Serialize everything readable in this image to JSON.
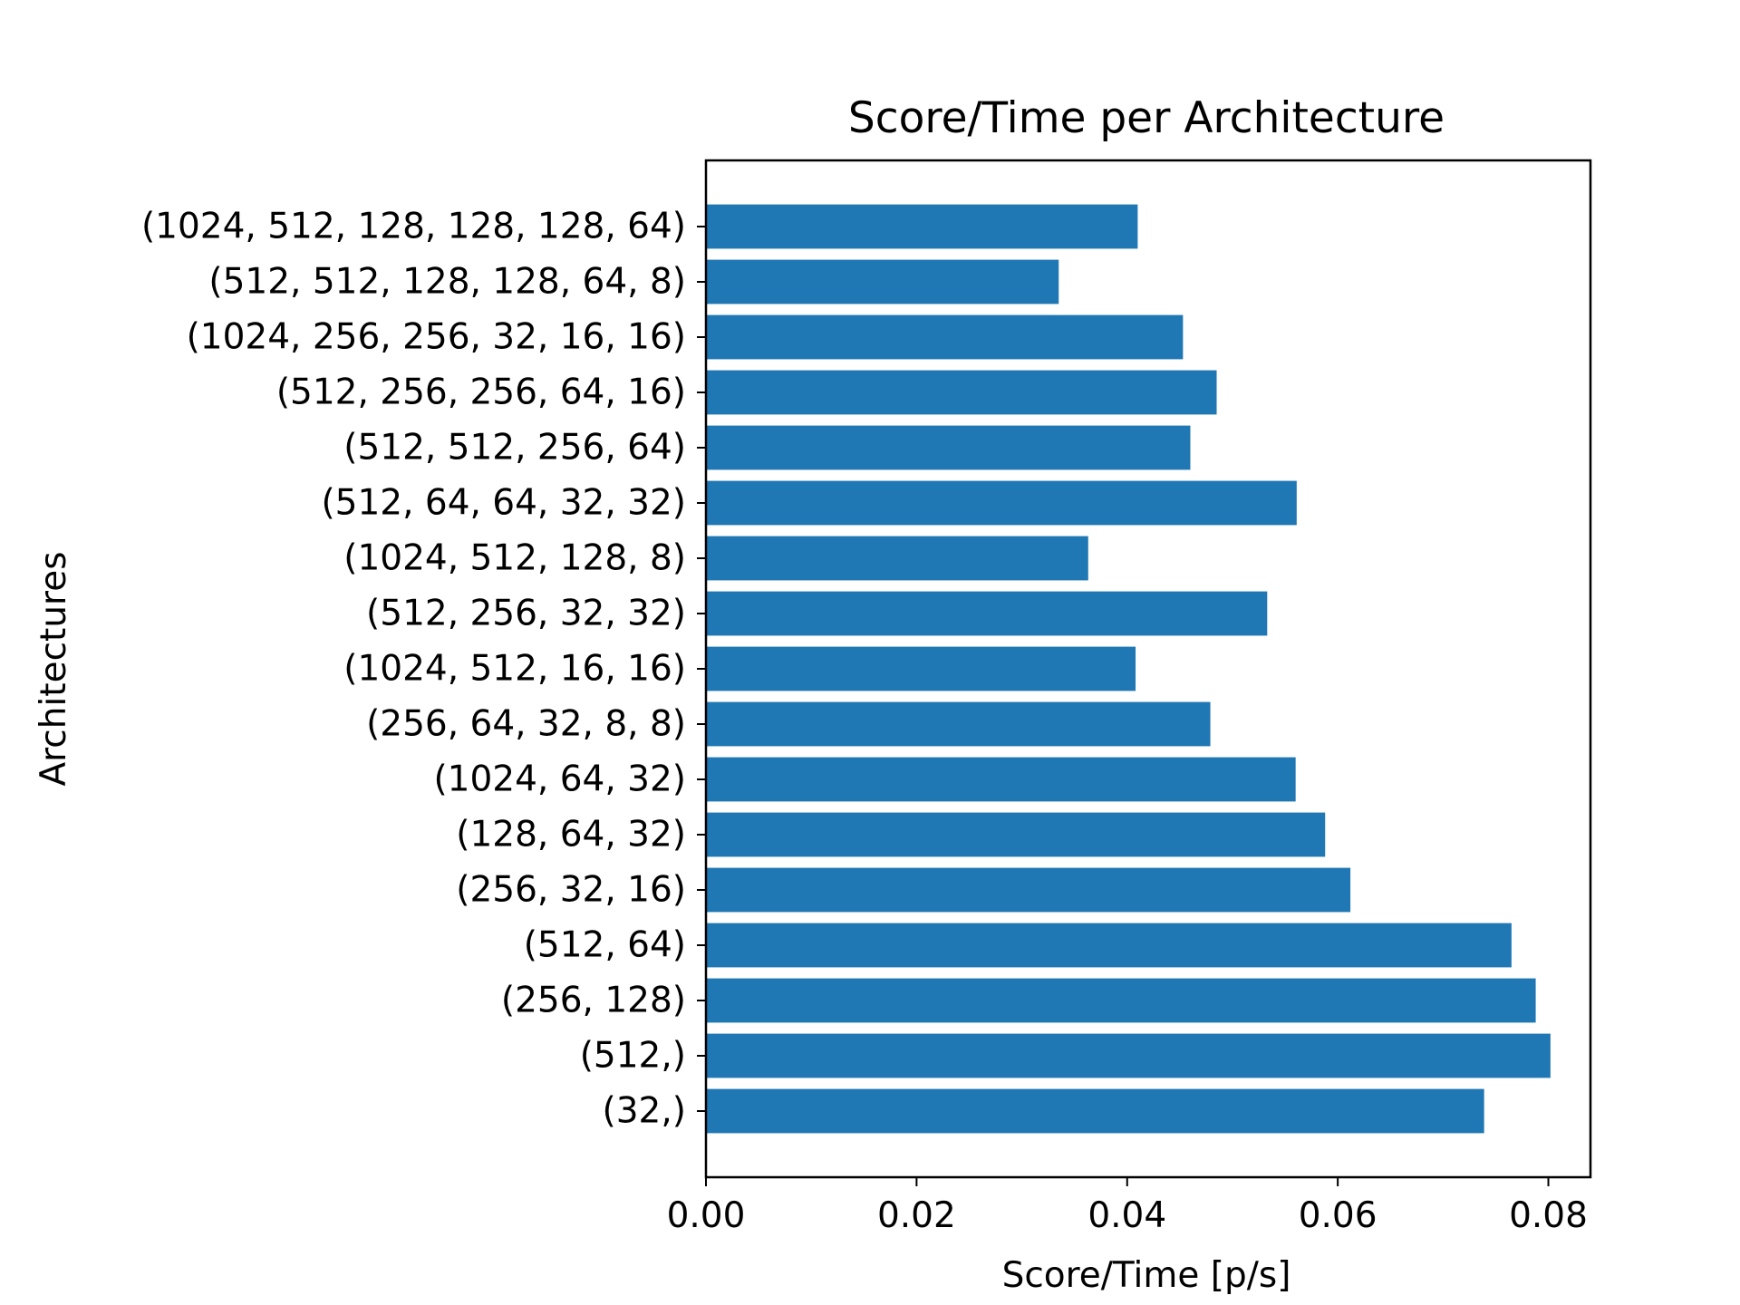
{
  "chart_data": {
    "type": "bar",
    "orientation": "horizontal",
    "title": "Score/Time per Architecture",
    "xlabel": "Score/Time [p/s]",
    "ylabel": "Architectures",
    "xlim": [
      0,
      0.084
    ],
    "xticks": [
      0.0,
      0.02,
      0.04,
      0.06,
      0.08
    ],
    "xtick_labels": [
      "0.00",
      "0.02",
      "0.04",
      "0.06",
      "0.08"
    ],
    "grid": false,
    "bar_color": "#1f77b4",
    "categories": [
      "(1024, 512, 128, 128, 128, 64)",
      "(512, 512, 128, 128, 64, 8)",
      "(1024, 256, 256, 32, 16, 16)",
      "(512, 256, 256, 64, 16)",
      "(512, 512, 256, 64)",
      "(512, 64, 64, 32, 32)",
      "(1024, 512, 128, 8)",
      "(512, 256, 32, 32)",
      "(1024, 512, 16, 16)",
      "(256, 64, 32, 8, 8)",
      "(1024, 64, 32)",
      "(128, 64, 32)",
      "(256, 32, 16)",
      "(512, 64)",
      "(256, 128)",
      "(512,)",
      "(32,)"
    ],
    "values": [
      0.041,
      0.0335,
      0.0453,
      0.0485,
      0.046,
      0.0561,
      0.0363,
      0.0533,
      0.0408,
      0.0479,
      0.056,
      0.0588,
      0.0612,
      0.0765,
      0.0788,
      0.0802,
      0.0739
    ]
  }
}
